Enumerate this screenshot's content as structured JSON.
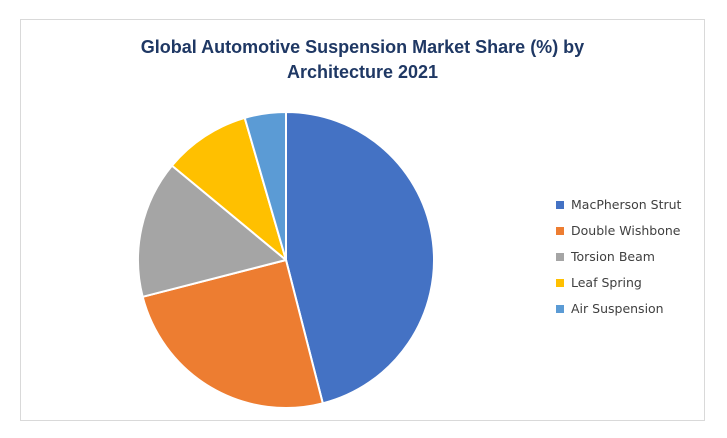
{
  "chart_data": {
    "type": "pie",
    "title_lines": [
      "Global Automotive Suspension Market Share (%) by",
      "Architecture 2021"
    ],
    "categories": [
      "MacPherson Strut",
      "Double Wishbone",
      "Torsion Beam",
      "Leaf Spring",
      "Air Suspension"
    ],
    "values": [
      46,
      25,
      15,
      9.5,
      4.5
    ],
    "unit": "%",
    "colors": [
      "#4472c4",
      "#ed7d31",
      "#a5a5a5",
      "#ffc000",
      "#5b9bd5"
    ],
    "legend_position": "right",
    "start_angle": "12 o'clock",
    "direction": "clockwise"
  }
}
